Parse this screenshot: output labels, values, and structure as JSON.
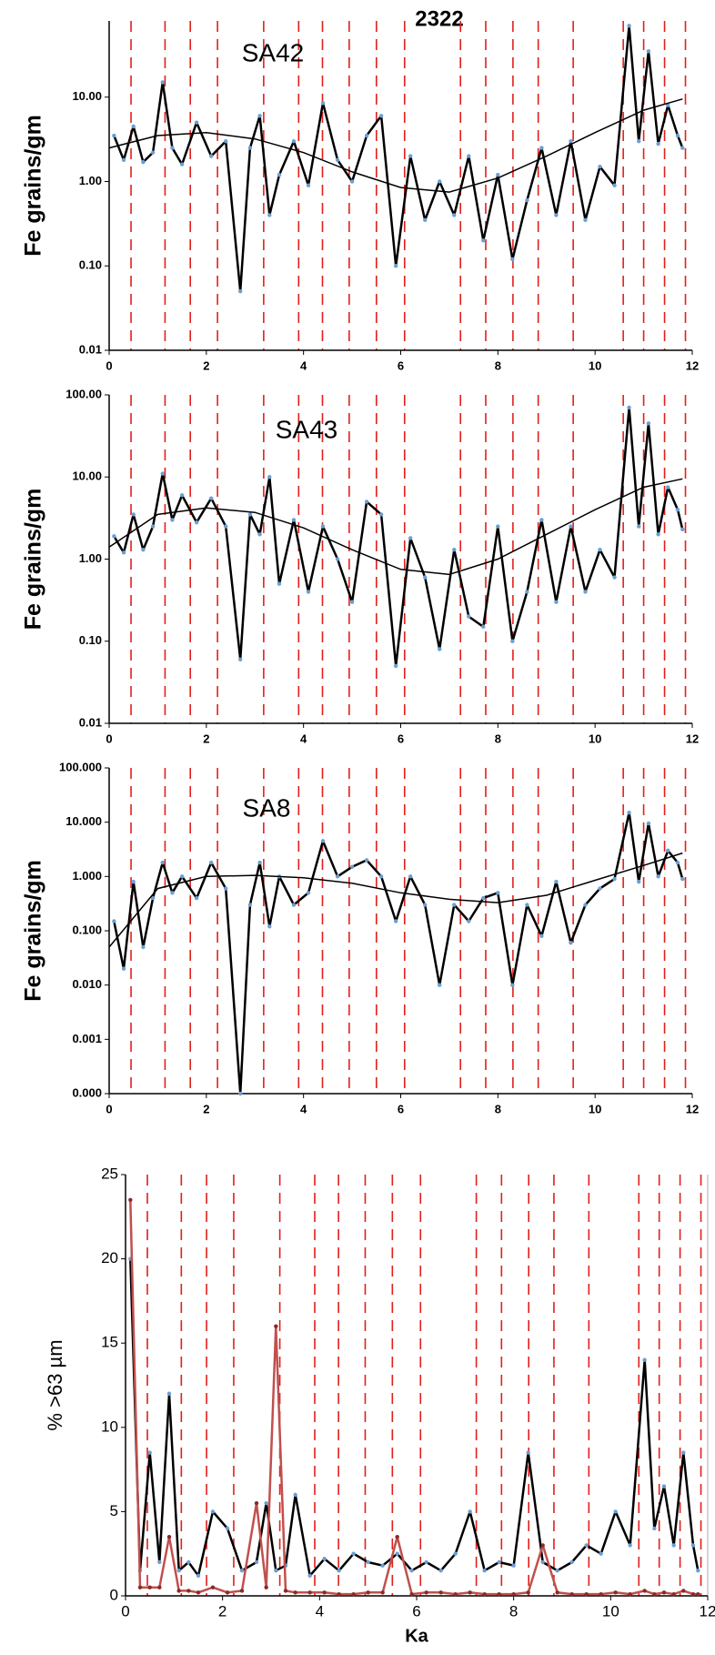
{
  "chart_data": [
    {
      "type": "line",
      "title": "2322",
      "label": "SA42",
      "ylabel": "Fe grains/gm",
      "log": true,
      "xlim": [
        0,
        12
      ],
      "xticks": [
        0,
        2,
        4,
        6,
        8,
        10,
        12
      ],
      "ylim": [
        0.01,
        80
      ],
      "yticks": [
        0.01,
        {
          "value": 0.1,
          "label": "0.10"
        },
        {
          "value": 1,
          "label": "1.00"
        },
        {
          "value": 10,
          "label": "10.00"
        }
      ],
      "events": [
        0.45,
        1.15,
        1.67,
        2.23,
        3.18,
        3.9,
        4.39,
        4.94,
        5.5,
        6.08,
        7.23,
        7.75,
        8.31,
        8.83,
        9.55,
        10.58,
        11.0,
        11.43,
        11.86
      ],
      "event_color": "#e0201b",
      "x": [
        0.1,
        0.3,
        0.5,
        0.7,
        0.9,
        1.1,
        1.3,
        1.5,
        1.8,
        2.1,
        2.4,
        2.7,
        2.9,
        3.1,
        3.3,
        3.5,
        3.8,
        4.1,
        4.4,
        4.7,
        5.0,
        5.3,
        5.6,
        5.9,
        6.2,
        6.5,
        6.8,
        7.1,
        7.4,
        7.7,
        8.0,
        8.3,
        8.6,
        8.9,
        9.2,
        9.5,
        9.8,
        10.1,
        10.4,
        10.7,
        10.9,
        11.1,
        11.3,
        11.5,
        11.7,
        11.8
      ],
      "series": [
        {
          "color": "#000000",
          "marker_color": "#6a9fd4",
          "values": [
            3.5,
            1.8,
            4.5,
            1.7,
            2.2,
            15,
            2.5,
            1.6,
            5.0,
            2.0,
            3.0,
            0.05,
            2.5,
            6.0,
            0.4,
            1.2,
            3.0,
            0.9,
            8.5,
            1.8,
            1.0,
            3.5,
            6.0,
            0.1,
            2.0,
            0.35,
            1.0,
            0.4,
            2.0,
            0.2,
            1.2,
            0.12,
            0.6,
            2.5,
            0.4,
            3.0,
            0.35,
            1.5,
            0.9,
            70,
            3.0,
            35,
            2.8,
            8.0,
            3.5,
            2.5
          ]
        }
      ],
      "trend": {
        "color": "#000000",
        "x": [
          0,
          1,
          2,
          3,
          4,
          5,
          6,
          7,
          8,
          9,
          10,
          11,
          11.8
        ],
        "values": [
          2.5,
          3.5,
          3.8,
          3.2,
          2.2,
          1.3,
          0.85,
          0.75,
          1.1,
          2.0,
          3.8,
          7,
          9.5
        ]
      }
    },
    {
      "type": "line",
      "label": "SA43",
      "ylabel": "Fe grains/gm",
      "log": true,
      "xlim": [
        0,
        12
      ],
      "xticks": [
        0,
        2,
        4,
        6,
        8,
        10,
        12
      ],
      "ylim": [
        0.01,
        100
      ],
      "yticks": [
        0.01,
        {
          "value": 0.1,
          "label": "0.10"
        },
        {
          "value": 1,
          "label": "1.00"
        },
        {
          "value": 10,
          "label": "10.00"
        },
        {
          "value": 100,
          "label": "100.00"
        }
      ],
      "events": [
        0.45,
        1.15,
        1.67,
        2.23,
        3.18,
        3.9,
        4.39,
        4.94,
        5.5,
        6.08,
        7.23,
        7.75,
        8.31,
        8.83,
        9.55,
        10.58,
        11.0,
        11.43,
        11.86
      ],
      "event_color": "#e0201b",
      "x": [
        0.1,
        0.3,
        0.5,
        0.7,
        0.9,
        1.1,
        1.3,
        1.5,
        1.8,
        2.1,
        2.4,
        2.7,
        2.9,
        3.1,
        3.3,
        3.5,
        3.8,
        4.1,
        4.4,
        4.7,
        5.0,
        5.3,
        5.6,
        5.9,
        6.2,
        6.5,
        6.8,
        7.1,
        7.4,
        7.7,
        8.0,
        8.3,
        8.6,
        8.9,
        9.2,
        9.5,
        9.8,
        10.1,
        10.4,
        10.7,
        10.9,
        11.1,
        11.3,
        11.5,
        11.7,
        11.8
      ],
      "series": [
        {
          "color": "#000000",
          "marker_color": "#6a9fd4",
          "values": [
            1.9,
            1.2,
            3.5,
            1.3,
            2.5,
            11,
            3.0,
            6.0,
            2.8,
            5.5,
            2.5,
            0.06,
            3.5,
            2.0,
            10,
            0.5,
            3.0,
            0.4,
            2.5,
            1.0,
            0.3,
            5.0,
            3.5,
            0.05,
            1.8,
            0.6,
            0.08,
            1.3,
            0.2,
            0.15,
            2.5,
            0.1,
            0.4,
            3.0,
            0.3,
            2.5,
            0.4,
            1.3,
            0.6,
            70,
            2.5,
            45,
            2.0,
            7.5,
            4.0,
            2.3
          ]
        }
      ],
      "trend": {
        "color": "#000000",
        "x": [
          0,
          1,
          2,
          3,
          4,
          5,
          6,
          7,
          8,
          9,
          10,
          11,
          11.8
        ],
        "values": [
          1.4,
          3.5,
          4.2,
          3.7,
          2.4,
          1.3,
          0.75,
          0.65,
          1.0,
          2.0,
          4.0,
          7.5,
          9.5
        ]
      }
    },
    {
      "type": "line",
      "label": "SA8",
      "ylabel": "Fe grains/gm",
      "log": true,
      "xlim": [
        0,
        12
      ],
      "xticks": [
        0,
        2,
        4,
        6,
        8,
        10,
        12
      ],
      "ylim": [
        0.0001,
        100
      ],
      "yticks": [
        {
          "value": 0.0001,
          "label": "0.000"
        },
        0.001,
        {
          "value": 0.01,
          "label": "0.010"
        },
        {
          "value": 0.1,
          "label": "0.100"
        },
        {
          "value": 1,
          "label": "1.000"
        },
        {
          "value": 10,
          "label": "10.000"
        },
        {
          "value": 100,
          "label": "100.000"
        }
      ],
      "events": [
        0.45,
        1.15,
        1.67,
        2.23,
        3.18,
        3.9,
        4.39,
        4.94,
        5.5,
        6.08,
        7.23,
        7.75,
        8.31,
        8.83,
        9.55,
        10.58,
        11.0,
        11.43,
        11.86
      ],
      "event_color": "#e0201b",
      "x": [
        0.1,
        0.3,
        0.5,
        0.7,
        0.9,
        1.1,
        1.3,
        1.5,
        1.8,
        2.1,
        2.4,
        2.7,
        2.9,
        3.1,
        3.3,
        3.5,
        3.8,
        4.1,
        4.4,
        4.7,
        5.0,
        5.3,
        5.6,
        5.9,
        6.2,
        6.5,
        6.8,
        7.1,
        7.4,
        7.7,
        8.0,
        8.3,
        8.6,
        8.9,
        9.2,
        9.5,
        9.8,
        10.1,
        10.4,
        10.7,
        10.9,
        11.1,
        11.3,
        11.5,
        11.7,
        11.8
      ],
      "series": [
        {
          "color": "#000000",
          "marker_color": "#6a9fd4",
          "values": [
            0.15,
            0.02,
            0.8,
            0.05,
            0.4,
            1.8,
            0.5,
            1.0,
            0.4,
            1.8,
            0.6,
            0.0001,
            0.3,
            1.8,
            0.12,
            1.0,
            0.3,
            0.5,
            4.5,
            1.0,
            1.5,
            2.0,
            1.0,
            0.15,
            1.0,
            0.3,
            0.01,
            0.3,
            0.15,
            0.4,
            0.5,
            0.01,
            0.3,
            0.08,
            0.8,
            0.06,
            0.3,
            0.6,
            0.9,
            15,
            0.8,
            9.5,
            1.0,
            3.0,
            1.8,
            0.9
          ]
        }
      ],
      "trend": {
        "color": "#000000",
        "x": [
          0,
          1,
          2,
          3,
          4,
          5,
          6,
          7,
          8,
          9,
          10,
          11,
          11.8
        ],
        "values": [
          0.05,
          0.6,
          1.0,
          1.05,
          0.95,
          0.75,
          0.5,
          0.38,
          0.33,
          0.45,
          0.85,
          1.6,
          2.7
        ]
      }
    },
    {
      "type": "line",
      "ylabel": "% >63 µm",
      "xlabel": "Ka",
      "log": false,
      "xlim": [
        0,
        12
      ],
      "xticks": [
        0,
        2,
        4,
        6,
        8,
        10,
        12
      ],
      "ylim": [
        0,
        25
      ],
      "yticks": [
        0,
        5,
        10,
        15,
        20,
        25
      ],
      "events": [
        0.45,
        1.15,
        1.67,
        2.23,
        3.18,
        3.9,
        4.39,
        4.94,
        5.5,
        6.08,
        7.23,
        7.75,
        8.31,
        8.83,
        9.55,
        10.58,
        11.0,
        11.43,
        11.86
      ],
      "event_color": "#e0201b",
      "x": [
        0.1,
        0.3,
        0.5,
        0.7,
        0.9,
        1.1,
        1.3,
        1.5,
        1.8,
        2.1,
        2.4,
        2.7,
        2.9,
        3.1,
        3.3,
        3.5,
        3.8,
        4.1,
        4.4,
        4.7,
        5.0,
        5.3,
        5.6,
        5.9,
        6.2,
        6.5,
        6.8,
        7.1,
        7.4,
        7.7,
        8.0,
        8.3,
        8.6,
        8.9,
        9.2,
        9.5,
        9.8,
        10.1,
        10.4,
        10.7,
        10.9,
        11.1,
        11.3,
        11.5,
        11.7,
        11.8
      ],
      "series": [
        {
          "color": "#000000",
          "marker_color": "#6a9fd4",
          "values": [
            20,
            1.5,
            8.5,
            2.0,
            12,
            1.5,
            2.0,
            1.2,
            5.0,
            4.0,
            1.5,
            2.0,
            5.5,
            1.5,
            1.8,
            6.0,
            1.2,
            2.2,
            1.5,
            2.5,
            2.0,
            1.8,
            2.5,
            1.5,
            2.0,
            1.5,
            2.5,
            5.0,
            1.5,
            2.0,
            1.8,
            8.5,
            2.0,
            1.5,
            2.0,
            3.0,
            2.5,
            5.0,
            3.0,
            14,
            4.0,
            6.5,
            3.0,
            8.5,
            3.0,
            1.5
          ]
        },
        {
          "color": "#c0504d",
          "marker_color": "#8b2a27",
          "values": [
            23.5,
            0.5,
            0.5,
            0.5,
            3.5,
            0.3,
            0.3,
            0.2,
            0.5,
            0.2,
            0.3,
            5.5,
            0.5,
            16,
            0.3,
            0.2,
            0.2,
            0.2,
            0.1,
            0.1,
            0.2,
            0.2,
            3.5,
            0.1,
            0.2,
            0.2,
            0.1,
            0.2,
            0.1,
            0.1,
            0.1,
            0.2,
            3.0,
            0.2,
            0.1,
            0.1,
            0.1,
            0.2,
            0.1,
            0.3,
            0.1,
            0.2,
            0.1,
            0.3,
            0.1,
            0.1
          ]
        }
      ]
    }
  ]
}
